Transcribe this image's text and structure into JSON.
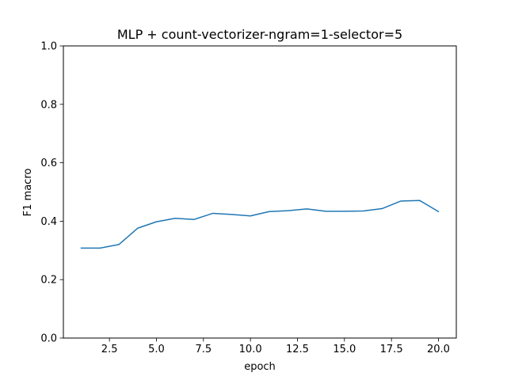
{
  "chart_data": {
    "type": "line",
    "title": "MLP + count-vectorizer-ngram=1-selector=5",
    "xlabel": "epoch",
    "ylabel": "F1 macro",
    "xlim": [
      0.05,
      20.95
    ],
    "ylim": [
      0.0,
      1.0
    ],
    "xticks": [
      2.5,
      5.0,
      7.5,
      10.0,
      12.5,
      15.0,
      17.5,
      20.0
    ],
    "xtick_labels": [
      "2.5",
      "5.0",
      "7.5",
      "10.0",
      "12.5",
      "15.0",
      "17.5",
      "20.0"
    ],
    "yticks": [
      0.0,
      0.2,
      0.4,
      0.6,
      0.8,
      1.0
    ],
    "ytick_labels": [
      "0.0",
      "0.2",
      "0.4",
      "0.6",
      "0.8",
      "1.0"
    ],
    "grid": false,
    "legend": "none",
    "series": [
      {
        "color": "#1f77b4",
        "x": [
          1,
          2,
          3,
          4,
          5,
          6,
          7,
          8,
          9,
          10,
          11,
          12,
          13,
          14,
          15,
          16,
          17,
          18,
          19,
          20
        ],
        "y": [
          0.308,
          0.308,
          0.32,
          0.376,
          0.398,
          0.41,
          0.406,
          0.427,
          0.423,
          0.418,
          0.433,
          0.436,
          0.442,
          0.434,
          0.434,
          0.435,
          0.443,
          0.469,
          0.471,
          0.433
        ]
      }
    ]
  }
}
